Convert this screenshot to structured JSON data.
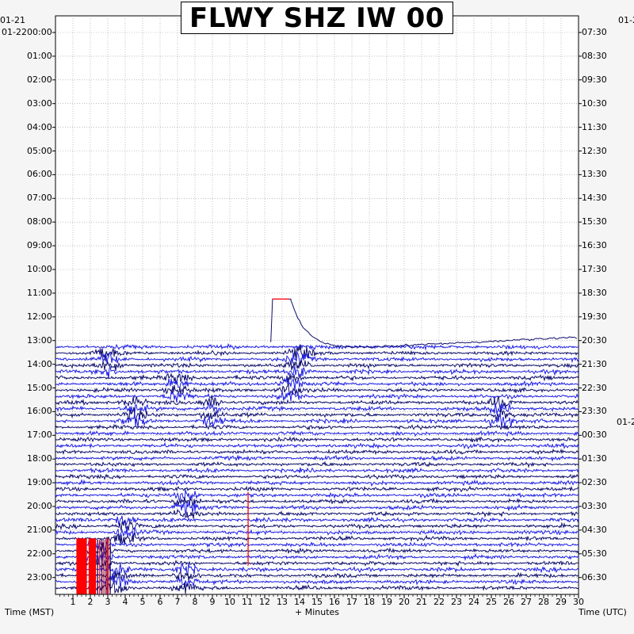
{
  "title": "FLWY SHZ IW 00",
  "header_left": {
    "date_top": "01-21",
    "date_bottom": "01-22"
  },
  "header_right": {
    "date_top": "01-2",
    "date_mid": "01-2"
  },
  "footer": {
    "left": "Time (MST)",
    "center": "+ Minutes",
    "right": "Time (UTC)"
  },
  "colors": {
    "dark_trace": "#0d0d6b",
    "blue_trace": "#1e1ee6",
    "clip_red": "#ff0000",
    "grid": "#999999"
  },
  "chart_data": {
    "type": "helicorder",
    "xlabel": "+ Minutes",
    "x_ticks": [
      "1",
      "2",
      "3",
      "4",
      "5",
      "6",
      "7",
      "8",
      "9",
      "10",
      "11",
      "12",
      "13",
      "14",
      "15",
      "16",
      "17",
      "18",
      "19",
      "20",
      "21",
      "22",
      "23",
      "24",
      "25",
      "26",
      "27",
      "28",
      "29",
      "30"
    ],
    "xlim": [
      0,
      30
    ],
    "left_labels": [
      "00:00",
      "01:00",
      "02:00",
      "03:00",
      "04:00",
      "05:00",
      "06:00",
      "07:00",
      "08:00",
      "09:00",
      "10:00",
      "11:00",
      "12:00",
      "13:00",
      "14:00",
      "15:00",
      "16:00",
      "17:00",
      "18:00",
      "19:00",
      "20:00",
      "21:00",
      "22:00",
      "23:00"
    ],
    "right_labels": [
      "07:30",
      "08:30",
      "09:30",
      "10:30",
      "11:30",
      "12:30",
      "13:30",
      "14:30",
      "15:30",
      "16:30",
      "17:30",
      "18:30",
      "19:30",
      "20:30",
      "21:30",
      "22:30",
      "23:30",
      "00:30",
      "01:30",
      "02:30",
      "03:30",
      "04:30",
      "05:30",
      "06:30"
    ],
    "trace_start_row": 13,
    "events": [
      {
        "row": 14,
        "minute": 3
      },
      {
        "row": 14,
        "minute": 14
      },
      {
        "row": 15,
        "minute": 7
      },
      {
        "row": 15,
        "minute": 13.5
      },
      {
        "row": 16,
        "minute": 4.5
      },
      {
        "row": 16,
        "minute": 9
      },
      {
        "row": 16,
        "minute": 25.5
      },
      {
        "row": 20,
        "minute": 7.5
      },
      {
        "row": 21,
        "minute": 4
      },
      {
        "row": 22,
        "minute": 2.5
      },
      {
        "row": 23,
        "minute": 3.5
      },
      {
        "row": 23,
        "minute": 7.5
      }
    ]
  }
}
